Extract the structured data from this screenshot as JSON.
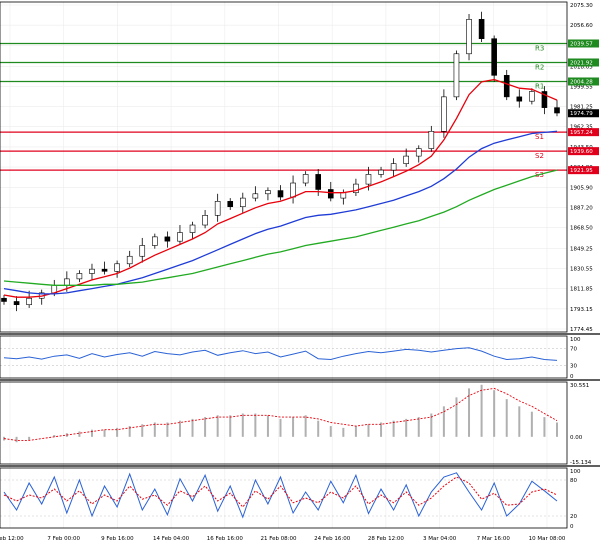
{
  "colors": {
    "background": "#ffffff",
    "grid": "#ececec",
    "frame": "#000000",
    "candle": "#000000",
    "ma_fast": "#e8000b",
    "ma_mid": "#1f3cd6",
    "ma_slow": "#22aa22",
    "resistance": "#1f8a1f",
    "support": "#e0001b",
    "oscillator": "#2a62d6",
    "signal": "#e8000b",
    "histogram": "#b0b0b0"
  },
  "chart_data": [
    {
      "type": "line",
      "panel": "price",
      "series_kind": "candlestick with moving averages",
      "x_tick_labels": [
        "Feb 12:00",
        "7 Feb 00:00",
        "9 Feb 16:00",
        "14 Feb 04:00",
        "16 Feb 16:00",
        "21 Feb 08:00",
        "24 Feb 16:00",
        "28 Feb 12:00",
        "3 Mar 04:00",
        "7 Mar 16:00",
        "10 Mar 08:00"
      ],
      "y_tick_labels": [
        "2075.30",
        "2056.60",
        "2037.85",
        "2018.05",
        "1999.55",
        "1981.25",
        "1962.35",
        "1943.50",
        "1924.80",
        "1905.90",
        "1887.20",
        "1868.50",
        "1849.25",
        "1830.55",
        "1811.85",
        "1793.15",
        "1774.45"
      ],
      "ylim": [
        1774.45,
        2075.3
      ],
      "current_price": "1974.79",
      "close": [
        1800,
        1797,
        1803,
        1808,
        1815,
        1821,
        1826,
        1830,
        1828,
        1835,
        1842,
        1852,
        1860,
        1856,
        1864,
        1871,
        1880,
        1893,
        1888,
        1896,
        1900,
        1903,
        1897,
        1910,
        1918,
        1904,
        1896,
        1901,
        1909,
        1918,
        1922,
        1928,
        1935,
        1942,
        1958,
        1990,
        2030,
        2062,
        2044,
        2010,
        1990,
        1986,
        1995,
        1980,
        1975
      ],
      "moving_averages": [
        {
          "label": "fast",
          "values": [
            1806,
            1804,
            1804,
            1805,
            1808,
            1812,
            1816,
            1820,
            1823,
            1826,
            1831,
            1837,
            1843,
            1848,
            1853,
            1858,
            1864,
            1872,
            1877,
            1882,
            1887,
            1891,
            1893,
            1897,
            1902,
            1902,
            1901,
            1901,
            1903,
            1907,
            1911,
            1916,
            1921,
            1927,
            1935,
            1950,
            1970,
            1992,
            2004,
            2006,
            2002,
            1998,
            1997,
            1992,
            1987
          ]
        },
        {
          "label": "mid",
          "values": [
            1812,
            1810,
            1808,
            1807,
            1807,
            1808,
            1810,
            1812,
            1814,
            1816,
            1819,
            1822,
            1826,
            1830,
            1834,
            1838,
            1843,
            1848,
            1853,
            1858,
            1863,
            1867,
            1870,
            1874,
            1878,
            1880,
            1881,
            1883,
            1885,
            1888,
            1891,
            1894,
            1898,
            1902,
            1907,
            1914,
            1923,
            1934,
            1942,
            1947,
            1950,
            1953,
            1956,
            1957,
            1958
          ]
        },
        {
          "label": "slow",
          "values": [
            1819,
            1818,
            1817,
            1816,
            1815,
            1815,
            1815,
            1815,
            1816,
            1816,
            1817,
            1818,
            1820,
            1822,
            1824,
            1826,
            1829,
            1832,
            1835,
            1838,
            1841,
            1844,
            1846,
            1849,
            1852,
            1854,
            1856,
            1858,
            1860,
            1863,
            1866,
            1869,
            1872,
            1875,
            1879,
            1883,
            1888,
            1894,
            1899,
            1904,
            1908,
            1912,
            1916,
            1919,
            1922
          ]
        }
      ],
      "levels": [
        {
          "label": "R3",
          "value": 2039.57,
          "text": "2039.57"
        },
        {
          "label": "R2",
          "value": 2021.92,
          "text": "2021.92"
        },
        {
          "label": "R1",
          "value": 2004.28,
          "text": "2004.28"
        },
        {
          "label": "S1",
          "value": 1957.24,
          "text": "1957.24"
        },
        {
          "label": "S2",
          "value": 1939.6,
          "text": "1939.60"
        },
        {
          "label": "S3",
          "value": 1921.95,
          "text": "1921.95"
        }
      ]
    },
    {
      "type": "line",
      "panel": "oscillator-1",
      "ylim": [
        0,
        100
      ],
      "y_tick_labels": [
        "100",
        "70",
        "30",
        "0"
      ],
      "values": [
        48,
        46,
        50,
        45,
        52,
        55,
        47,
        58,
        50,
        56,
        60,
        52,
        63,
        58,
        55,
        62,
        66,
        54,
        60,
        65,
        58,
        62,
        50,
        57,
        64,
        46,
        44,
        52,
        58,
        63,
        60,
        64,
        68,
        66,
        62,
        66,
        70,
        72,
        64,
        52,
        44,
        46,
        50,
        44,
        42
      ]
    },
    {
      "type": "bar",
      "panel": "oscillator-2",
      "ylim": [
        -15.134,
        30.551
      ],
      "y_tick_labels": [
        "30.551",
        "0.00",
        "-15.134"
      ],
      "values": [
        -2,
        -3,
        -2,
        0,
        1,
        2,
        3,
        4,
        4,
        5,
        6,
        7,
        8,
        8,
        9,
        10,
        11,
        12,
        12,
        13,
        13,
        12,
        10,
        11,
        12,
        9,
        6,
        5,
        6,
        7,
        8,
        9,
        10,
        11,
        13,
        17,
        22,
        27,
        29,
        26,
        21,
        17,
        14,
        11,
        8
      ],
      "signal": [
        -1,
        -2,
        -2,
        -1,
        0,
        1,
        2,
        3,
        4,
        4,
        5,
        6,
        7,
        7,
        8,
        9,
        10,
        11,
        11,
        12,
        12,
        12,
        11,
        11,
        11,
        10,
        8,
        7,
        6,
        7,
        7,
        8,
        9,
        10,
        11,
        14,
        18,
        23,
        26,
        27,
        24,
        20,
        17,
        13,
        9
      ]
    },
    {
      "type": "line",
      "panel": "oscillator-3",
      "ylim": [
        0,
        100
      ],
      "y_tick_labels": [
        "100",
        "80",
        "20",
        "0"
      ],
      "series": [
        {
          "label": "main",
          "values": [
            60,
            30,
            75,
            40,
            85,
            25,
            80,
            20,
            70,
            35,
            90,
            30,
            65,
            22,
            82,
            45,
            88,
            28,
            70,
            18,
            80,
            40,
            85,
            25,
            60,
            30,
            78,
            42,
            88,
            24,
            65,
            30,
            72,
            20,
            60,
            85,
            92,
            60,
            30,
            75,
            20,
            40,
            78,
            62,
            45
          ]
        },
        {
          "label": "signal",
          "values": [
            55,
            45,
            55,
            50,
            65,
            45,
            62,
            40,
            55,
            45,
            70,
            48,
            55,
            38,
            62,
            52,
            70,
            45,
            58,
            35,
            62,
            48,
            70,
            42,
            50,
            42,
            60,
            50,
            70,
            40,
            55,
            42,
            60,
            38,
            50,
            70,
            85,
            75,
            48,
            58,
            38,
            40,
            60,
            65,
            55
          ]
        }
      ]
    }
  ]
}
